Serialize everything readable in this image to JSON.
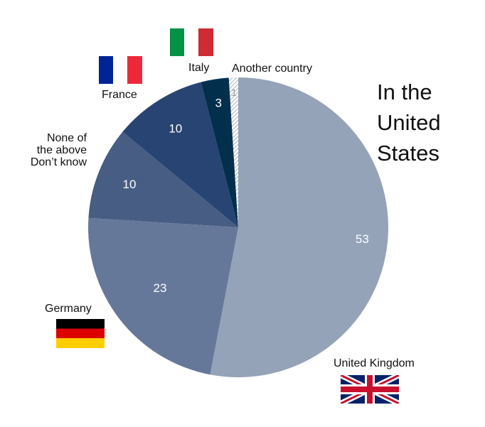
{
  "title_lines": [
    "In the",
    "United",
    "States"
  ],
  "colors": {
    "uk": "#94a3b8",
    "germany": "#66789a",
    "none": "#485d84",
    "france": "#284473",
    "italy": "#02304c",
    "other_hatch": "#9aa0a8"
  },
  "labels": {
    "uk": "United Kingdom",
    "germany": "Germany",
    "none_lines": [
      "None of",
      "the above",
      "Don’t know"
    ],
    "france": "France",
    "italy": "Italy",
    "other": "Another country"
  },
  "chart_data": {
    "type": "pie",
    "title": "In the United States",
    "slices": [
      {
        "label": "United Kingdom",
        "value": 53,
        "color": "#94a3b8",
        "icon": "uk-flag-icon"
      },
      {
        "label": "Germany",
        "value": 23,
        "color": "#66789a",
        "icon": "germany-flag-icon"
      },
      {
        "label": "None of the above Don’t know",
        "value": 10,
        "color": "#485d84"
      },
      {
        "label": "France",
        "value": 10,
        "color": "#284473",
        "icon": "france-flag-icon"
      },
      {
        "label": "Italy",
        "value": 3,
        "color": "#02304c",
        "icon": "italy-flag-icon"
      },
      {
        "label": "Another country",
        "value": 1,
        "color": "#ffffff",
        "pattern": "hatch"
      }
    ],
    "start": "12 o'clock",
    "direction": "clockwise"
  }
}
